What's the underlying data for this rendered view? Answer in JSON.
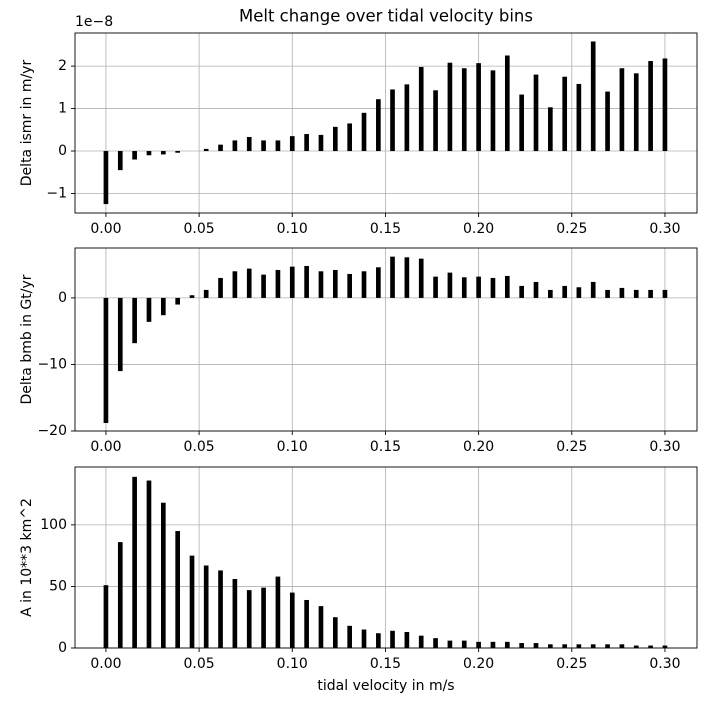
{
  "chart_data": [
    {
      "type": "bar",
      "title": "Melt change over tidal velocity bins",
      "y_label": "Delta ismr in m/yr",
      "offset_text": "1e−8",
      "color": "#000000",
      "grid": true,
      "x": [
        0,
        0.0077,
        0.0154,
        0.0231,
        0.0308,
        0.0385,
        0.0462,
        0.0538,
        0.0615,
        0.0692,
        0.0769,
        0.0846,
        0.0923,
        0.1,
        0.1077,
        0.1154,
        0.1231,
        0.1308,
        0.1385,
        0.1462,
        0.1538,
        0.1615,
        0.1692,
        0.1769,
        0.1846,
        0.1923,
        0.2,
        0.2077,
        0.2154,
        0.2231,
        0.2308,
        0.2385,
        0.2462,
        0.2538,
        0.2615,
        0.2692,
        0.2769,
        0.2846,
        0.2923,
        0.3
      ],
      "values": [
        -1.25,
        -0.45,
        -0.2,
        -0.1,
        -0.08,
        -0.04,
        0,
        0.05,
        0.15,
        0.25,
        0.33,
        0.25,
        0.25,
        0.35,
        0.4,
        0.38,
        0.57,
        0.65,
        0.9,
        1.22,
        1.45,
        1.57,
        1.98,
        1.43,
        2.08,
        1.95,
        2.07,
        1.9,
        2.25,
        1.33,
        1.8,
        1.03,
        1.75,
        1.58,
        2.58,
        1.4,
        1.95,
        1.83,
        2.12,
        2.18
      ],
      "xlim": [
        -0.0166,
        0.3172
      ],
      "xticks": [
        {
          "value": 0,
          "label": "0.00"
        },
        {
          "value": 0.05,
          "label": "0.05"
        },
        {
          "value": 0.1,
          "label": "0.10"
        },
        {
          "value": 0.15,
          "label": "0.15"
        },
        {
          "value": 0.2,
          "label": "0.20"
        },
        {
          "value": 0.25,
          "label": "0.25"
        },
        {
          "value": 0.3,
          "label": "0.30"
        }
      ],
      "ylim": [
        -1.46,
        2.78
      ],
      "yticks": [
        {
          "value": -1,
          "label": "−1"
        },
        0,
        1,
        2
      ]
    },
    {
      "type": "bar",
      "y_label": "Delta bmb in Gt/yr",
      "color": "#000000",
      "grid": true,
      "x": [
        0,
        0.0077,
        0.0154,
        0.0231,
        0.0308,
        0.0385,
        0.0462,
        0.0538,
        0.0615,
        0.0692,
        0.0769,
        0.0846,
        0.0923,
        0.1,
        0.1077,
        0.1154,
        0.1231,
        0.1308,
        0.1385,
        0.1462,
        0.1538,
        0.1615,
        0.1692,
        0.1769,
        0.1846,
        0.1923,
        0.2,
        0.2077,
        0.2154,
        0.2231,
        0.2308,
        0.2385,
        0.2462,
        0.2538,
        0.2615,
        0.2692,
        0.2769,
        0.2846,
        0.2923,
        0.3
      ],
      "values": [
        -18.8,
        -11,
        -6.8,
        -3.6,
        -2.6,
        -1,
        0.4,
        1.2,
        3,
        4,
        4.4,
        3.5,
        4.2,
        4.7,
        4.8,
        4,
        4.2,
        3.6,
        4,
        4.6,
        6.2,
        6.1,
        5.9,
        3.2,
        3.8,
        3.1,
        3.2,
        3,
        3.3,
        1.8,
        2.4,
        1.2,
        1.8,
        1.6,
        2.4,
        1.2,
        1.5,
        1.2,
        1.2,
        1.2
      ],
      "xlim": [
        -0.0166,
        0.3172
      ],
      "xticks": [
        {
          "value": 0,
          "label": "0.00"
        },
        {
          "value": 0.05,
          "label": "0.05"
        },
        {
          "value": 0.1,
          "label": "0.10"
        },
        {
          "value": 0.15,
          "label": "0.15"
        },
        {
          "value": 0.2,
          "label": "0.20"
        },
        {
          "value": 0.25,
          "label": "0.25"
        },
        {
          "value": 0.3,
          "label": "0.30"
        }
      ],
      "ylim": [
        -20,
        7.5
      ],
      "yticks": [
        {
          "value": -20,
          "label": "−20"
        },
        {
          "value": -10,
          "label": "−10"
        },
        0
      ]
    },
    {
      "type": "bar",
      "y_label": "A in 10**3 km^2",
      "x_label": "tidal velocity in m/s",
      "color": "#000000",
      "grid": true,
      "x": [
        0,
        0.0077,
        0.0154,
        0.0231,
        0.0308,
        0.0385,
        0.0462,
        0.0538,
        0.0615,
        0.0692,
        0.0769,
        0.0846,
        0.0923,
        0.1,
        0.1077,
        0.1154,
        0.1231,
        0.1308,
        0.1385,
        0.1462,
        0.1538,
        0.1615,
        0.1692,
        0.1769,
        0.1846,
        0.1923,
        0.2,
        0.2077,
        0.2154,
        0.2231,
        0.2308,
        0.2385,
        0.2462,
        0.2538,
        0.2615,
        0.2692,
        0.2769,
        0.2846,
        0.2923,
        0.3
      ],
      "values": [
        51,
        86,
        139,
        136,
        118,
        95,
        75,
        67,
        63,
        56,
        47,
        49,
        58,
        45,
        39,
        34,
        25,
        18,
        15,
        12,
        14,
        13,
        10,
        8,
        6,
        6,
        5,
        5,
        5,
        4,
        4,
        3,
        3,
        3,
        3,
        3,
        3,
        2,
        2,
        2
      ],
      "xlim": [
        -0.0166,
        0.3172
      ],
      "xticks": [
        {
          "value": 0,
          "label": "0.00"
        },
        {
          "value": 0.05,
          "label": "0.05"
        },
        {
          "value": 0.1,
          "label": "0.10"
        },
        {
          "value": 0.15,
          "label": "0.15"
        },
        {
          "value": 0.2,
          "label": "0.20"
        },
        {
          "value": 0.25,
          "label": "0.25"
        },
        {
          "value": 0.3,
          "label": "0.30"
        }
      ],
      "ylim": [
        0,
        147
      ],
      "yticks": [
        0,
        50,
        100
      ]
    }
  ]
}
